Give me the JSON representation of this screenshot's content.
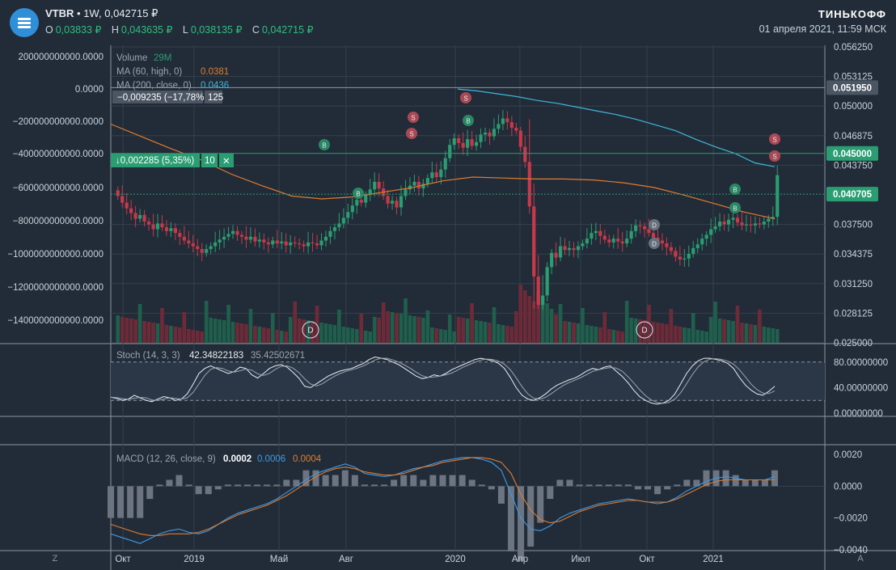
{
  "header": {
    "symbol": "VTBR",
    "interval": "1W",
    "price": "0,042715 ₽",
    "sep": "•",
    "ohlc": [
      {
        "k": "O",
        "v": "0,03833 ₽"
      },
      {
        "k": "H",
        "v": "0,043635 ₽"
      },
      {
        "k": "L",
        "v": "0,038135 ₽"
      },
      {
        "k": "C",
        "v": "0,042715 ₽"
      }
    ],
    "brand": "ТИНЬКОФФ",
    "timestamp": "01 апреля 2021, 11:59 МСК"
  },
  "legend": {
    "volume_label": "Volume",
    "volume_value": "29M",
    "ma60_label": "MA (60, high, 0)",
    "ma60_value": "0.0381",
    "ma200_label": "MA (200, close, 0)",
    "ma200_value": "0.0436",
    "measure1_text": "−0,009235 (−17,78%)",
    "measure1_bars": "125",
    "measure2_text": "↓0,002285 (5,35%)",
    "measure2_bars": "10",
    "stoch_label": "Stoch (14, 3, 3)",
    "stoch_v1": "42.34822183",
    "stoch_v2": "35.42502671",
    "macd_label": "MACD (12, 26, close, 9)",
    "macd_v1": "0.0002",
    "macd_v2": "0.0006",
    "macd_v3": "0.0004"
  },
  "colors": {
    "bg": "#222c38",
    "up": "#2a9d72",
    "down": "#c9384a",
    "ma60": "#e07b2e",
    "ma200": "#3fb6d8",
    "badge_sell": "#b24a55",
    "badge_buy": "#2a8c66",
    "accent_green": "#2fbf7d"
  },
  "left_axis": [
    "200000000000.0000",
    "0.0000",
    "−200000000000.0000",
    "−400000000000.0000",
    "−600000000000.0000",
    "−800000000000.0000",
    "−1000000000000.0000",
    "−1200000000000.0000",
    "−1400000000000.0000"
  ],
  "right_axis_main": [
    "0.056250",
    "0.053125",
    "0.050000",
    "0.046875",
    "0.043750",
    "0.037500",
    "0.034375",
    "0.031250",
    "0.028125",
    "0.025000"
  ],
  "price_tags": [
    {
      "text": "0.051950",
      "style": "gray"
    },
    {
      "text": "0.045000",
      "style": "green"
    },
    {
      "text": "0.040705",
      "style": "green"
    }
  ],
  "right_axis_stoch": [
    "80.00000000",
    "40.00000000",
    "0.00000000"
  ],
  "right_axis_macd": [
    "0.0020",
    "0.0000",
    "−0.0020",
    "−0.0040"
  ],
  "x_axis": [
    "Окт",
    "2019",
    "Май",
    "Авг",
    "2020",
    "Апр",
    "Июл",
    "Окт",
    "2021"
  ],
  "corner_left": "Z",
  "corner_right": "A",
  "markers": [
    {
      "kind": "buy",
      "text": "B"
    },
    {
      "kind": "buy",
      "text": "B"
    },
    {
      "kind": "sell",
      "text": "S"
    },
    {
      "kind": "sell",
      "text": "S"
    },
    {
      "kind": "sell",
      "text": "S"
    },
    {
      "kind": "buy",
      "text": "B"
    },
    {
      "kind": "div",
      "text": "D"
    },
    {
      "kind": "div",
      "text": "D"
    },
    {
      "kind": "buy",
      "text": "B"
    },
    {
      "kind": "buy",
      "text": "B"
    },
    {
      "kind": "sell",
      "text": "S"
    },
    {
      "kind": "sell",
      "text": "S"
    },
    {
      "kind": "div_big",
      "text": "D"
    },
    {
      "kind": "div_big",
      "text": "D"
    }
  ],
  "chart_data": {
    "type": "candlestick",
    "interval": "1W",
    "price_unit": "₽",
    "closes": [
      0.0405,
      0.0398,
      0.0392,
      0.0387,
      0.0381,
      0.0385,
      0.0378,
      0.0375,
      0.037,
      0.0376,
      0.0372,
      0.0368,
      0.0371,
      0.0366,
      0.0362,
      0.0358,
      0.0355,
      0.0352,
      0.0349,
      0.0345,
      0.0349,
      0.0352,
      0.0356,
      0.0359,
      0.0362,
      0.0365,
      0.0368,
      0.0364,
      0.0362,
      0.0359,
      0.0362,
      0.0357,
      0.0359,
      0.0356,
      0.0354,
      0.0358,
      0.0355,
      0.0357,
      0.0353,
      0.0356,
      0.0355,
      0.0354,
      0.0352,
      0.0356,
      0.0355,
      0.0353,
      0.0358,
      0.0362,
      0.0368,
      0.0372,
      0.0376,
      0.0382,
      0.0388,
      0.0395,
      0.0401,
      0.0398,
      0.0406,
      0.0412,
      0.042,
      0.0413,
      0.0405,
      0.0397,
      0.04,
      0.0393,
      0.0405,
      0.0412,
      0.0416,
      0.042,
      0.0413,
      0.0418,
      0.0424,
      0.043,
      0.0425,
      0.0433,
      0.0445,
      0.0459,
      0.0466,
      0.0461,
      0.0456,
      0.0465,
      0.0458,
      0.0462,
      0.047,
      0.0472,
      0.0468,
      0.0476,
      0.0481,
      0.0487,
      0.0483,
      0.0477,
      0.0474,
      0.0457,
      0.0441,
      0.0394,
      0.032,
      0.029,
      0.03,
      0.033,
      0.0345,
      0.034,
      0.0352,
      0.0348,
      0.035,
      0.0348,
      0.0352,
      0.0355,
      0.036,
      0.0366,
      0.0368,
      0.0363,
      0.0359,
      0.0356,
      0.036,
      0.0357,
      0.0355,
      0.036,
      0.0368,
      0.0374,
      0.0373,
      0.037,
      0.0366,
      0.0361,
      0.0358,
      0.0355,
      0.0351,
      0.0347,
      0.0341,
      0.0338,
      0.0339,
      0.0344,
      0.035,
      0.0354,
      0.036,
      0.0364,
      0.037,
      0.0373,
      0.0378,
      0.0375,
      0.038,
      0.0382,
      0.0377,
      0.0374,
      0.0375,
      0.0374,
      0.0376,
      0.0375,
      0.0378,
      0.0381,
      0.0383,
      0.04271
    ],
    "ma200": [
      0.0518,
      0.0516,
      0.0513,
      0.051,
      0.0506,
      0.0503,
      0.0499,
      0.0495,
      0.0491,
      0.0486,
      0.048,
      0.0474,
      0.0465,
      0.0457,
      0.045,
      0.044,
      0.0436
    ],
    "ma60_approx": [
      0.0481,
      0.0468,
      0.0455,
      0.0443,
      0.0428,
      0.0416,
      0.0405,
      0.0402,
      0.0404,
      0.0409,
      0.0414,
      0.0421,
      0.0425,
      0.0424,
      0.0423,
      0.0423,
      0.0422,
      0.0419,
      0.0414,
      0.0406,
      0.0397,
      0.0388,
      0.0381
    ],
    "y_range": [
      0.025,
      0.05625
    ],
    "y_ticks": [
      0.05625,
      0.053125,
      0.05,
      0.046875,
      0.04375,
      0.0375,
      0.034375,
      0.03125,
      0.028125,
      0.025
    ],
    "horizontal_levels": [
      0.05195,
      0.045,
      0.040705
    ],
    "stoch_k": [
      25,
      23,
      20,
      22,
      28,
      24,
      20,
      18,
      22,
      26,
      24,
      20,
      22,
      30,
      45,
      62,
      70,
      74,
      70,
      66,
      62,
      65,
      72,
      70,
      60,
      55,
      62,
      70,
      74,
      76,
      72,
      64,
      55,
      42,
      40,
      46,
      52,
      58,
      62,
      66,
      68,
      70,
      74,
      78,
      84,
      88,
      86,
      84,
      80,
      76,
      70,
      64,
      58,
      54,
      56,
      60,
      58,
      62,
      68,
      72,
      76,
      80,
      84,
      86,
      84,
      82,
      78,
      70,
      56,
      40,
      28,
      22,
      20,
      24,
      30,
      38,
      44,
      48,
      52,
      55,
      60,
      66,
      70,
      68,
      72,
      74,
      66,
      58,
      48,
      36,
      26,
      20,
      16,
      14,
      16,
      20,
      30,
      46,
      62,
      74,
      82,
      86,
      86,
      84,
      82,
      78,
      70,
      56,
      44,
      36,
      30,
      28,
      34,
      42
    ],
    "stoch_ticks": [
      80,
      40,
      0
    ],
    "macd_line": [
      -0.003,
      -0.0032,
      -0.0034,
      -0.0036,
      -0.0033,
      -0.003,
      -0.0028,
      -0.0027,
      -0.0029,
      -0.003,
      -0.0028,
      -0.0024,
      -0.002,
      -0.0017,
      -0.0015,
      -0.0013,
      -0.0011,
      -0.0008,
      -0.0004,
      0.0,
      0.0004,
      0.0008,
      0.001,
      0.0012,
      0.0014,
      0.0012,
      0.0008,
      0.0007,
      0.0006,
      0.0007,
      0.0009,
      0.0011,
      0.0012,
      0.0014,
      0.0016,
      0.0017,
      0.0018,
      0.0018,
      0.0017,
      0.0015,
      0.001,
      -0.0005,
      -0.002,
      -0.0027,
      -0.0028,
      -0.0025,
      -0.002,
      -0.0017,
      -0.0015,
      -0.0013,
      -0.0011,
      -0.001,
      -0.0009,
      -0.0008,
      -0.0009,
      -0.001,
      -0.0011,
      -0.001,
      -0.0007,
      -0.0003,
      0.0,
      0.0003,
      0.0005,
      0.0006,
      0.0005,
      0.0004,
      0.0004,
      0.0004,
      0.0006
    ],
    "macd_signal": [
      -0.0024,
      -0.0026,
      -0.0028,
      -0.003,
      -0.0031,
      -0.0031,
      -0.003,
      -0.003,
      -0.003,
      -0.0029,
      -0.0027,
      -0.0024,
      -0.0021,
      -0.0018,
      -0.0016,
      -0.0014,
      -0.0012,
      -0.0009,
      -0.0006,
      -0.0002,
      0.0002,
      0.0006,
      0.0009,
      0.0011,
      0.0012,
      0.0011,
      0.0009,
      0.0008,
      0.0007,
      0.0007,
      0.0008,
      0.001,
      0.0012,
      0.0013,
      0.0015,
      0.0016,
      0.0017,
      0.0018,
      0.0018,
      0.0017,
      0.0015,
      0.0008,
      -0.0005,
      -0.0015,
      -0.0021,
      -0.0023,
      -0.0022,
      -0.0019,
      -0.0016,
      -0.0014,
      -0.0012,
      -0.0011,
      -0.001,
      -0.0009,
      -0.0009,
      -0.001,
      -0.001,
      -0.001,
      -0.0008,
      -0.0005,
      -0.0002,
      0.0001,
      0.0003,
      0.0004,
      0.0004,
      0.0004,
      0.0004,
      0.0004,
      0.0004
    ],
    "macd_ticks": [
      0.002,
      0.0,
      -0.002,
      -0.004
    ],
    "volume_ticks": [
      200000000000,
      0,
      -200000000000,
      -400000000000,
      -600000000000,
      -800000000000,
      -1000000000000,
      -1200000000000,
      -1400000000000
    ]
  }
}
